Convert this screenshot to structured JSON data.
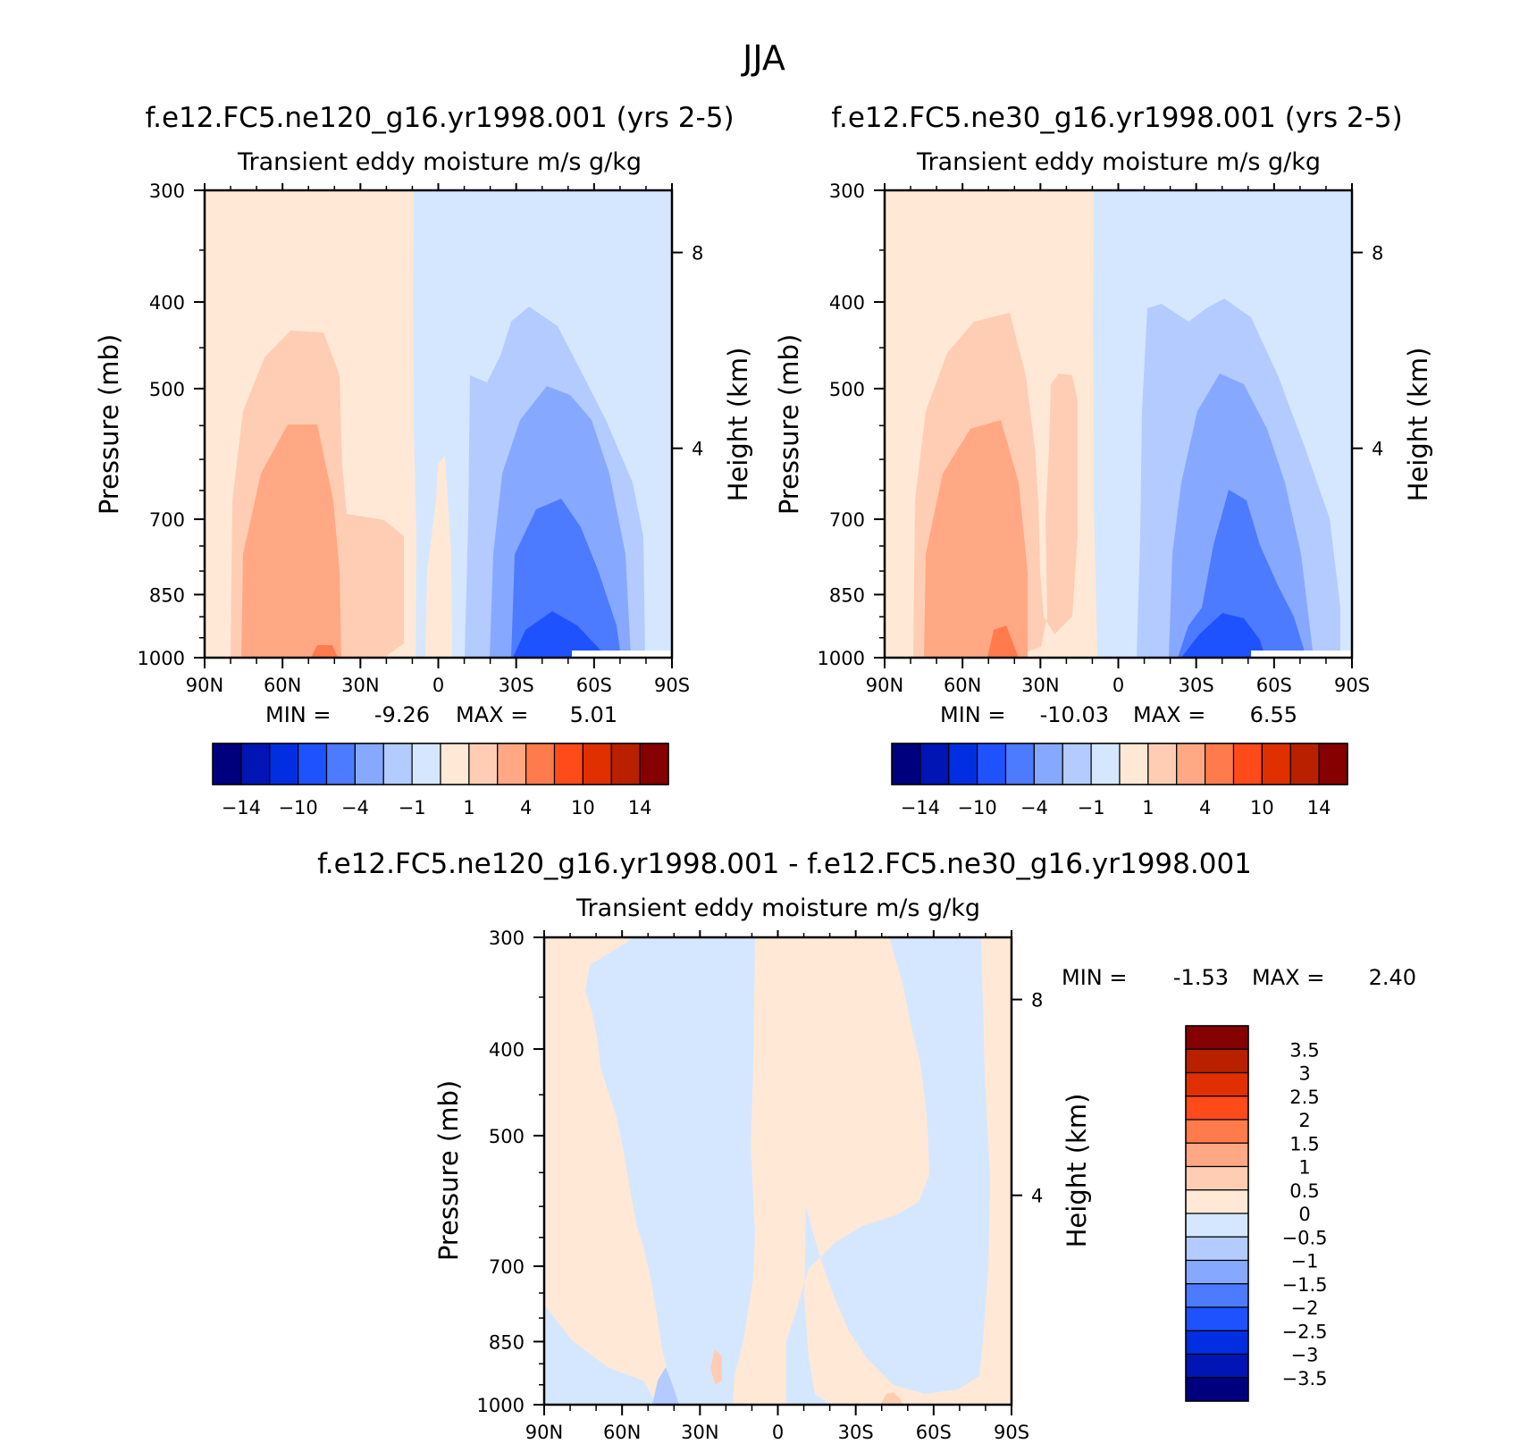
{
  "figure": {
    "main_title": "JJA",
    "colors": {
      "p01": "#00007f",
      "p02": "#0015b3",
      "p03": "#002ee0",
      "p04": "#1f52ff",
      "p05": "#4c7bff",
      "p06": "#86a9ff",
      "p07": "#b3cbff",
      "p08": "#d5e7ff",
      "p09": "#ffe9d6",
      "p10": "#ffcdb3",
      "p11": "#ffa883",
      "p12": "#ff7b4c",
      "p13": "#ff4a1a",
      "p14": "#e03000",
      "p15": "#b82000",
      "p16": "#850000"
    }
  },
  "chart_data": [
    {
      "type": "heatmap",
      "case_title": "f.e12.FC5.ne120_g16.yr1998.001 (yrs 2-5)",
      "title": "Transient eddy moisture m/s g/kg",
      "ylabel": "Pressure (mb)",
      "ylabel_right": "Height (km)",
      "x_ticks": [
        "90N",
        "60N",
        "30N",
        "0",
        "30S",
        "60S",
        "90S"
      ],
      "y_ticks": [
        "300",
        "400",
        "500",
        "700",
        "850",
        "1000"
      ],
      "y_right_ticks": [
        "8",
        "4"
      ],
      "ylim": [
        1000,
        300
      ],
      "min_label": "MIN =",
      "min_value": "-9.26",
      "max_label": "MAX =",
      "max_value": "5.01",
      "colorbar_labels": [
        "-14",
        "-10",
        "-4",
        "-1",
        "1",
        "4",
        "10",
        "14"
      ]
    },
    {
      "type": "heatmap",
      "case_title": "f.e12.FC5.ne30_g16.yr1998.001 (yrs 2-5)",
      "title": "Transient eddy moisture m/s g/kg",
      "ylabel": "Pressure (mb)",
      "ylabel_right": "Height (km)",
      "x_ticks": [
        "90N",
        "60N",
        "30N",
        "0",
        "30S",
        "60S",
        "90S"
      ],
      "y_ticks": [
        "300",
        "400",
        "500",
        "700",
        "850",
        "1000"
      ],
      "y_right_ticks": [
        "8",
        "4"
      ],
      "ylim": [
        1000,
        300
      ],
      "min_label": "MIN =",
      "min_value": "-10.03",
      "max_label": "MAX =",
      "max_value": "6.55",
      "colorbar_labels": [
        "-14",
        "-10",
        "-4",
        "-1",
        "1",
        "4",
        "10",
        "14"
      ]
    },
    {
      "type": "heatmap",
      "case_title": "f.e12.FC5.ne120_g16.yr1998.001 - f.e12.FC5.ne30_g16.yr1998.001",
      "title": "Transient eddy moisture m/s g/kg",
      "ylabel": "Pressure (mb)",
      "ylabel_right": "Height (km)",
      "x_ticks": [
        "90N",
        "60N",
        "30N",
        "0",
        "30S",
        "60S",
        "90S"
      ],
      "y_ticks": [
        "300",
        "400",
        "500",
        "700",
        "850",
        "1000"
      ],
      "y_right_ticks": [
        "8",
        "4"
      ],
      "ylim": [
        1000,
        300
      ],
      "min_label": "MIN =",
      "min_value": "-1.53",
      "max_label": "MAX =",
      "max_value": "2.40",
      "colorbar_labels": [
        "3.5",
        "3",
        "2.5",
        "2",
        "1.5",
        "1",
        "0.5",
        "0",
        "-0.5",
        "-1",
        "-1.5",
        "-2",
        "-2.5",
        "-3",
        "-3.5"
      ]
    }
  ]
}
